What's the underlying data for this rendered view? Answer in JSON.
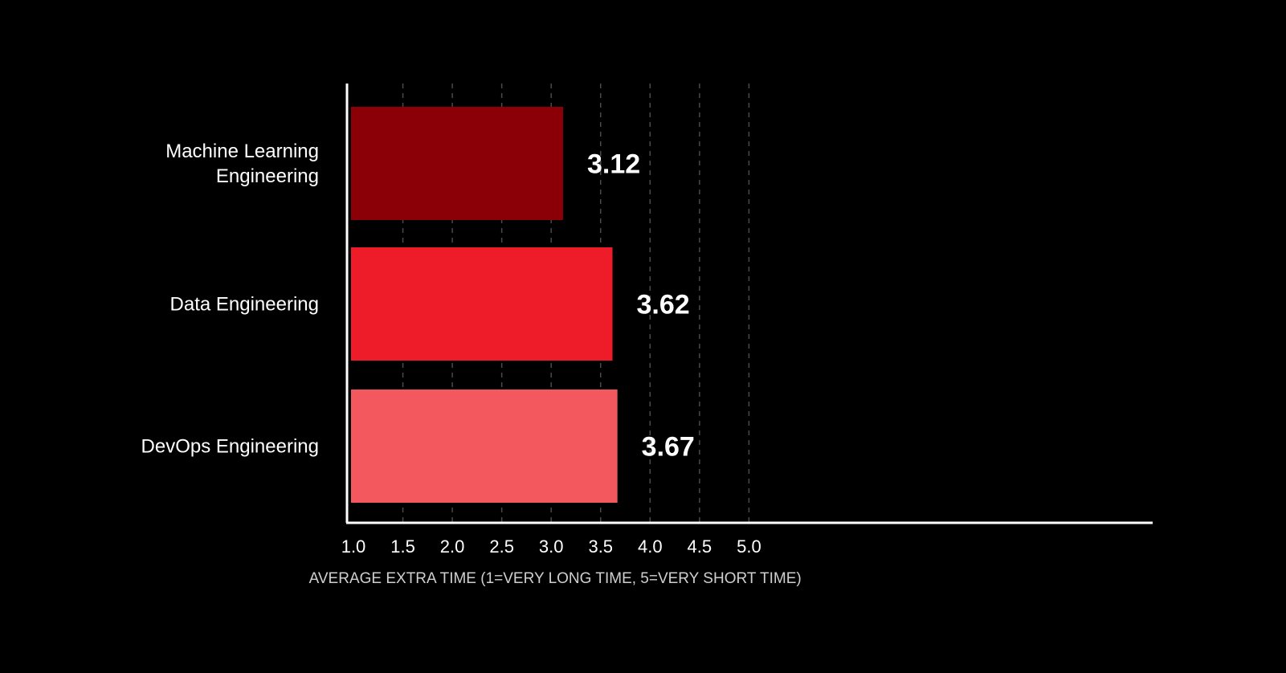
{
  "chart_data": {
    "type": "bar",
    "orientation": "horizontal",
    "categories": [
      "Machine Learning Engineering",
      "Data Engineering",
      "DevOps Engineering"
    ],
    "category_lines": [
      [
        "Machine Learning",
        "Engineering"
      ],
      [
        "Data Engineering"
      ],
      [
        "DevOps Engineering"
      ]
    ],
    "values": [
      3.12,
      3.62,
      3.67
    ],
    "value_labels": [
      "3.12",
      "3.62",
      "3.67"
    ],
    "colors": [
      "#8b0006",
      "#ed1c28",
      "#f2585d"
    ],
    "xlabel": "AVERAGE EXTRA TIME (1=VERY LONG TIME, 5=VERY SHORT TIME)",
    "xlim": [
      1.0,
      5.0
    ],
    "xticks": [
      "1.0",
      "1.5",
      "2.0",
      "2.5",
      "3.0",
      "3.5",
      "4.0",
      "4.5",
      "5.0"
    ],
    "grid": "vertical-dashed",
    "legend": "none"
  },
  "theme": {
    "background": "#000000",
    "axis_color": "#ffffff",
    "grid_color": "#4a4a4a",
    "text_color": "#ffffff"
  }
}
